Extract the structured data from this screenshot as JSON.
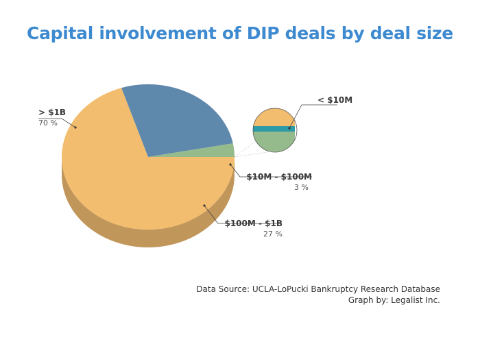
{
  "chart_data": {
    "type": "pie",
    "title": "Capital involvement of DIP deals by deal size",
    "slices": [
      {
        "label": "> $1B",
        "value": 70,
        "value_label": "70 %",
        "color": "#f2bd6e",
        "side_color": "#c1965a"
      },
      {
        "label": "$100M - $1B",
        "value": 27,
        "value_label": "27 %",
        "color": "#5f88ad",
        "side_color": "#3e5f7d"
      },
      {
        "label": "$10M - $100M",
        "value": 3,
        "value_label": "3 %",
        "color": "#95bb8c",
        "side_color": "#6f9168"
      },
      {
        "label": "< $10M",
        "value_label": "",
        "color": "#2e9aa5"
      }
    ],
    "inset": {
      "label": "< $10M",
      "zoom": true
    }
  },
  "footer": {
    "source": "Data Source: UCLA-LoPucki Bankruptcy Research Database",
    "credit": "Graph by: Legalist Inc."
  }
}
